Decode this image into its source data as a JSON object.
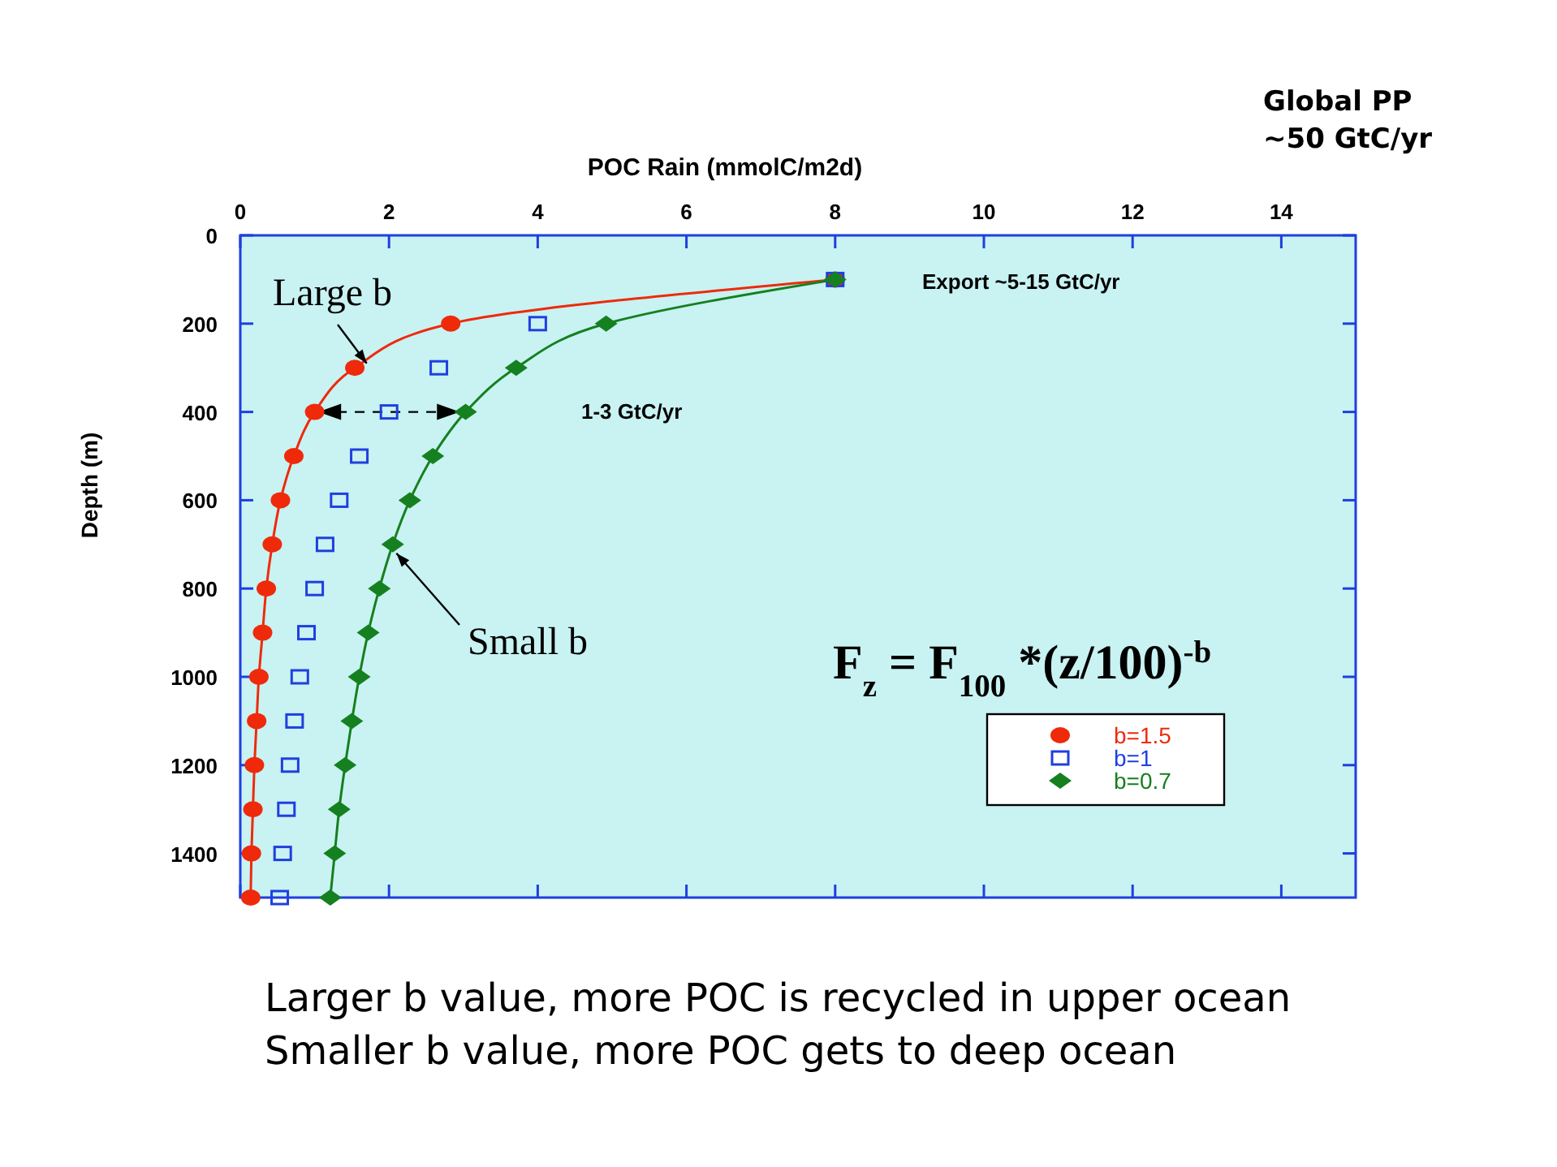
{
  "chart_data": {
    "type": "line",
    "xlabel": "POC Rain (mmolC/m2d)",
    "ylabel": "Depth (m)",
    "xlim": [
      0,
      15
    ],
    "xticks": [
      0,
      2,
      4,
      6,
      8,
      10,
      12,
      14
    ],
    "ylim": [
      1500,
      0
    ],
    "yticks": [
      0,
      200,
      400,
      600,
      800,
      1000,
      1200,
      1400
    ],
    "grid": false,
    "legend": "right",
    "series": [
      {
        "name": "b=1.5",
        "type": "line",
        "marker": "circle",
        "color": "#ee2a0b",
        "x": [
          8,
          2.83,
          1.54,
          1.0,
          0.72,
          0.54,
          0.43,
          0.35,
          0.3,
          0.25,
          0.22,
          0.19,
          0.17,
          0.15,
          0.14
        ],
        "values": [
          100,
          200,
          300,
          400,
          500,
          600,
          700,
          800,
          900,
          1000,
          1100,
          1200,
          1300,
          1400,
          1500
        ]
      },
      {
        "name": "b=1",
        "type": "scatter",
        "marker": "square",
        "color": "#1f3fe0",
        "x": [
          8,
          4,
          2.67,
          2,
          1.6,
          1.33,
          1.14,
          1,
          0.89,
          0.8,
          0.73,
          0.67,
          0.62,
          0.57,
          0.53
        ],
        "values": [
          100,
          200,
          300,
          400,
          500,
          600,
          700,
          800,
          900,
          1000,
          1100,
          1200,
          1300,
          1400,
          1500
        ]
      },
      {
        "name": "b=0.7",
        "type": "line",
        "marker": "diamond",
        "color": "#15801f",
        "x": [
          8,
          4.92,
          3.71,
          3.03,
          2.59,
          2.28,
          2.05,
          1.87,
          1.72,
          1.6,
          1.5,
          1.41,
          1.33,
          1.27,
          1.21
        ],
        "values": [
          100,
          200,
          300,
          400,
          500,
          600,
          700,
          800,
          900,
          1000,
          1100,
          1200,
          1300,
          1400,
          1500
        ]
      }
    ],
    "annotations": [
      {
        "text": "Large b",
        "x": 1.7,
        "y": 290
      },
      {
        "text": "Small b",
        "x": 2.1,
        "y": 720
      },
      "Export ~5-15 GtC/yr",
      "1-3 GtC/yr",
      "F$_{z}$ = F$_{100}$ *(z/100)$^{-b}$",
      "Global PP\n~50 GtC/yr",
      "Larger b value, more POC is recycled in upper ocean\nSmaller b value, more POC gets to deep ocean"
    ]
  }
}
